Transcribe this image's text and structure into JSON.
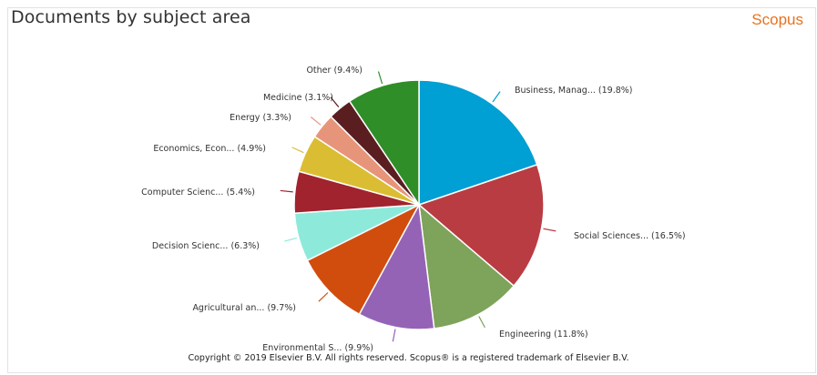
{
  "header": {
    "title": "Documents by subject area",
    "brand": "Scopus"
  },
  "footer": {
    "copyright": "Copyright © 2019 Elsevier B.V. All rights reserved. Scopus® is a registered trademark of Elsevier B.V."
  },
  "chart_data": {
    "type": "pie",
    "title": "Documents by subject area",
    "slices": [
      {
        "label": "Business, Manag... (19.8%)",
        "value": 19.8,
        "color": "#009fd4"
      },
      {
        "label": "Social Sciences... (16.5%)",
        "value": 16.5,
        "color": "#b93c43"
      },
      {
        "label": "Engineering (11.8%)",
        "value": 11.8,
        "color": "#7ea35a"
      },
      {
        "label": "Environmental S... (9.9%)",
        "value": 9.9,
        "color": "#9563b6"
      },
      {
        "label": "Agricultural an... (9.7%)",
        "value": 9.7,
        "color": "#d14d0d"
      },
      {
        "label": "Decision Scienc... (6.3%)",
        "value": 6.3,
        "color": "#8deadb"
      },
      {
        "label": "Computer Scienc... (5.4%)",
        "value": 5.4,
        "color": "#a0232e"
      },
      {
        "label": "Economics, Econ... (4.9%)",
        "value": 4.9,
        "color": "#dbbd34"
      },
      {
        "label": "Energy (3.3%)",
        "value": 3.3,
        "color": "#e7957a"
      },
      {
        "label": "Medicine (3.1%)",
        "value": 3.1,
        "color": "#5a1e21"
      },
      {
        "label": "Other (9.4%)",
        "value": 9.4,
        "color": "#2f8e27"
      }
    ]
  }
}
